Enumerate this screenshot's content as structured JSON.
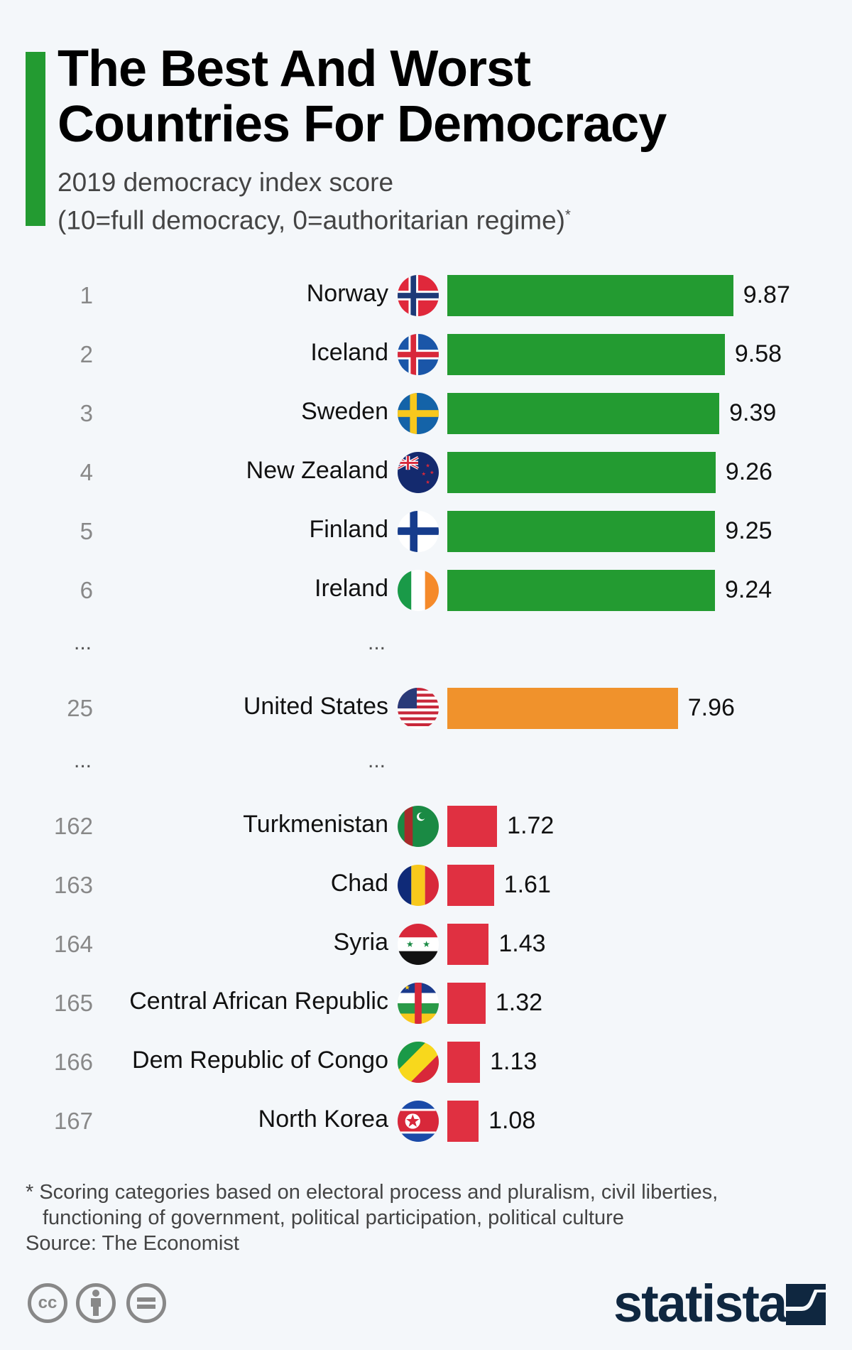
{
  "header": {
    "title_line1": "The Best And Worst",
    "title_line2": "Countries For Democracy",
    "subtitle_line1": "2019 democracy index score",
    "subtitle_line2": "(10=full democracy, 0=authoritarian regime)",
    "subtitle_mark": "*"
  },
  "chart_data": {
    "type": "bar",
    "orientation": "horizontal",
    "title": "The Best And Worst Countries For Democracy",
    "subtitle": "2019 democracy index score (10=full democracy, 0=authoritarian regime)*",
    "xlim": [
      0,
      10
    ],
    "ellipsis": "...",
    "colors": {
      "top": "#239b31",
      "us": "#f0922c",
      "bottom": "#e03041"
    },
    "rows": [
      {
        "rank": "1",
        "country": "Norway",
        "value": 9.87,
        "label": "9.87",
        "group": "top",
        "flag": "norway"
      },
      {
        "rank": "2",
        "country": "Iceland",
        "value": 9.58,
        "label": "9.58",
        "group": "top",
        "flag": "iceland"
      },
      {
        "rank": "3",
        "country": "Sweden",
        "value": 9.39,
        "label": "9.39",
        "group": "top",
        "flag": "sweden"
      },
      {
        "rank": "4",
        "country": "New Zealand",
        "value": 9.26,
        "label": "9.26",
        "group": "top",
        "flag": "new-zealand"
      },
      {
        "rank": "5",
        "country": "Finland",
        "value": 9.25,
        "label": "9.25",
        "group": "top",
        "flag": "finland"
      },
      {
        "rank": "6",
        "country": "Ireland",
        "value": 9.24,
        "label": "9.24",
        "group": "top",
        "flag": "ireland"
      },
      {
        "gap": true
      },
      {
        "rank": "25",
        "country": "United States",
        "value": 7.96,
        "label": "7.96",
        "group": "us",
        "flag": "united-states"
      },
      {
        "gap": true
      },
      {
        "rank": "162",
        "country": "Turkmenistan",
        "value": 1.72,
        "label": "1.72",
        "group": "bottom",
        "flag": "turkmenistan"
      },
      {
        "rank": "163",
        "country": "Chad",
        "value": 1.61,
        "label": "1.61",
        "group": "bottom",
        "flag": "chad"
      },
      {
        "rank": "164",
        "country": "Syria",
        "value": 1.43,
        "label": "1.43",
        "group": "bottom",
        "flag": "syria"
      },
      {
        "rank": "165",
        "country": "Central African Republic",
        "value": 1.32,
        "label": "1.32",
        "group": "bottom",
        "flag": "central-african-republic"
      },
      {
        "rank": "166",
        "country": "Dem Republic of Congo",
        "value": 1.13,
        "label": "1.13",
        "group": "bottom",
        "flag": "congo"
      },
      {
        "rank": "167",
        "country": "North Korea",
        "value": 1.08,
        "label": "1.08",
        "group": "bottom",
        "flag": "north-korea"
      }
    ]
  },
  "footer": {
    "note_line1": "* Scoring categories based on electoral process and pluralism, civil liberties,",
    "note_line2": "functioning of government, political participation, political culture",
    "source": "Source: The Economist",
    "cc_label": "cc",
    "brand": "statista"
  }
}
